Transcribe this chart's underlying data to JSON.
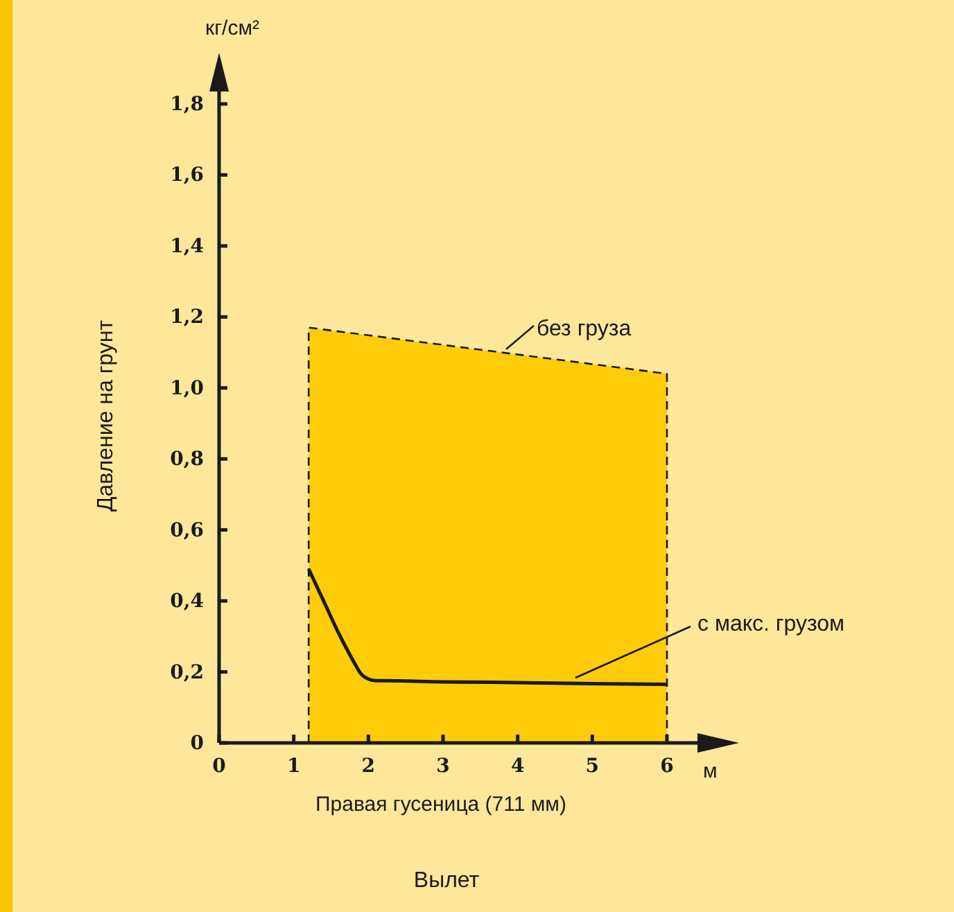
{
  "chart_data": {
    "type": "area",
    "xlabel": "Вылет",
    "ylabel": "Давление на грунт",
    "annotations": [
      "кг/см²",
      "м",
      "Правая гусеница (711 мм)"
    ],
    "xlim": [
      0,
      6
    ],
    "xticks": [
      0,
      1,
      2,
      3,
      4,
      5,
      6
    ],
    "ylim": [
      0,
      1.8
    ],
    "yticks": [
      {
        "value": 0,
        "label": "0"
      },
      {
        "value": 0.2,
        "label": "0,2"
      },
      {
        "value": 0.4,
        "label": "0,4"
      },
      {
        "value": 0.6,
        "label": "0,6"
      },
      {
        "value": 0.8,
        "label": "0,8"
      },
      {
        "value": 1.0,
        "label": "1,0"
      },
      {
        "value": 1.2,
        "label": "1,2"
      },
      {
        "value": 1.4,
        "label": "1,4"
      },
      {
        "value": 1.6,
        "label": "1,6"
      },
      {
        "value": 1.8,
        "label": "1,8"
      }
    ],
    "grid": false,
    "series": [
      {
        "name": "без груза",
        "color": "#ffcc0a",
        "line_style": "dashed",
        "x": [
          1.2,
          6
        ],
        "values": [
          1.17,
          1.04
        ]
      },
      {
        "name": "с макс. грузом",
        "type": "line",
        "color": "#1a1a1a",
        "line_style": "solid",
        "x": [
          1.2,
          1.4,
          1.6,
          1.8,
          1.9,
          2.0,
          2.1,
          2.2,
          3,
          4,
          5,
          6
        ],
        "values": [
          0.49,
          0.4,
          0.31,
          0.23,
          0.195,
          0.18,
          0.175,
          0.175,
          0.172,
          0.17,
          0.167,
          0.165
        ]
      }
    ]
  }
}
